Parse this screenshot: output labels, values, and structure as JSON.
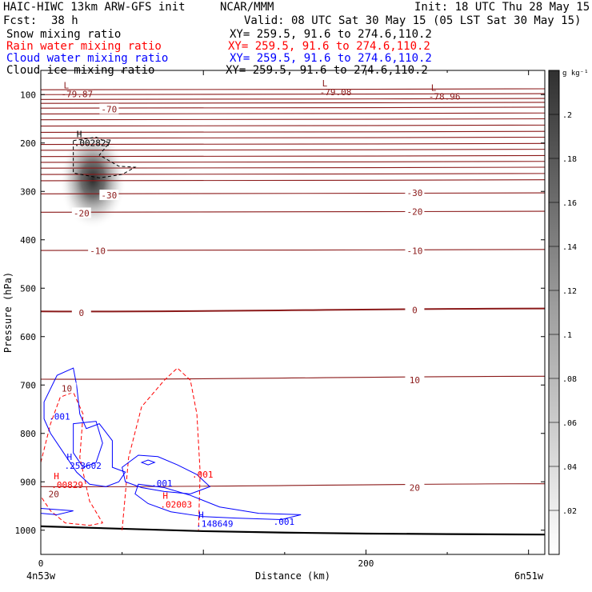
{
  "header": {
    "model": "HAIC-HIWC 13km ARW-GFS init",
    "org": "NCAR/MMM",
    "init": "Init: 18 UTC Thu 28 May 15",
    "fcst_label": "Fcst:",
    "fcst_value": "38 h",
    "valid": "Valid: 08 UTC Sat 30 May 15 (05 LST Sat 30 May 15)"
  },
  "fields": [
    {
      "name": "Snow mixing ratio",
      "xy": "XY= 259.5, 91.6 to 274.6,110.2",
      "color": "#000000"
    },
    {
      "name": "Rain water mixing ratio",
      "xy": "XY= 259.5, 91.6 to 274.6,110.2",
      "color": "#ff0000"
    },
    {
      "name": "Cloud water mixing ratio",
      "xy": "XY= 259.5, 91.6 to 274.6,110.2",
      "color": "#0000ff"
    },
    {
      "name": "Cloud ice mixing ratio",
      "xy": "XY= 259.5, 91.6 to 274.6,110.2",
      "color": "#000000"
    }
  ],
  "chart_data": {
    "type": "cross-section contour",
    "xlabel": "Distance (km)",
    "ylabel": "Pressure (hPa)",
    "x_ticks": [
      0,
      200
    ],
    "y_ticks": [
      100,
      200,
      300,
      400,
      500,
      600,
      700,
      800,
      900,
      1000
    ],
    "xlim": [
      0,
      310
    ],
    "ylim": [
      1050,
      50
    ],
    "y_scale": "linear",
    "x_endpoints": {
      "left": "4n53w",
      "right": "6n51w"
    },
    "colorbar": {
      "unit": "g kg⁻¹",
      "labels": [
        ".2",
        ".18",
        ".16",
        ".14",
        ".12",
        ".1",
        ".08",
        ".06",
        ".04",
        ".02"
      ],
      "ticks": [
        0.2,
        0.18,
        0.16,
        0.14,
        0.12,
        0.1,
        0.08,
        0.06,
        0.04,
        0.02
      ]
    },
    "temperature_contours": {
      "color": "#8b1a1a",
      "labels": [
        {
          "text": "-70",
          "x": 42,
          "p": 130
        },
        {
          "text": "-30",
          "x": 42,
          "p": 308
        },
        {
          "text": "-30",
          "x": 230,
          "p": 303
        },
        {
          "text": "-20",
          "x": 25,
          "p": 345
        },
        {
          "text": "-20",
          "x": 230,
          "p": 342
        },
        {
          "text": "-10",
          "x": 35,
          "p": 423
        },
        {
          "text": "-10",
          "x": 230,
          "p": 423
        },
        {
          "text": "0",
          "x": 25,
          "p": 551
        },
        {
          "text": "0",
          "x": 230,
          "p": 545
        },
        {
          "text": "10",
          "x": 16,
          "p": 707
        },
        {
          "text": "10",
          "x": 230,
          "p": 690
        },
        {
          "text": "20",
          "x": 8,
          "p": 925
        },
        {
          "text": "20",
          "x": 230,
          "p": 912
        }
      ]
    },
    "extrema": [
      {
        "kind": "L",
        "value": "-79.87",
        "x": 14,
        "p": 87,
        "color": "#8b1a1a"
      },
      {
        "kind": "L",
        "value": "-79.08",
        "x": 173,
        "p": 83,
        "color": "#8b1a1a"
      },
      {
        "kind": "L",
        "value": "-78.96",
        "x": 240,
        "p": 92,
        "color": "#8b1a1a"
      },
      {
        "kind": "H",
        "value": ".002827",
        "x": 22,
        "p": 188,
        "color": "#000000"
      },
      {
        "kind": "H",
        "value": ".253602",
        "x": 16,
        "p": 855,
        "color": "#0000ff"
      },
      {
        "kind": "H",
        "value": ".00829",
        "x": 8,
        "p": 895,
        "color": "#ff0000"
      },
      {
        "kind": "H",
        "value": ".02003",
        "x": 75,
        "p": 935,
        "color": "#ff0000"
      },
      {
        "kind": "H",
        "value": ".148649",
        "x": 97,
        "p": 975,
        "color": "#0000ff"
      }
    ],
    "contour_labels": [
      {
        "text": ".001",
        "x": 5,
        "p": 765,
        "color": "#0000ff"
      },
      {
        "text": ".001",
        "x": 68,
        "p": 903,
        "color": "#0000ff"
      },
      {
        "text": ".001",
        "x": 93,
        "p": 885,
        "color": "#ff0000"
      },
      {
        "text": ".001",
        "x": 143,
        "p": 982,
        "color": "#0000ff"
      }
    ],
    "snow_max": {
      "x": 32,
      "p": 275,
      "value": 0.2
    },
    "ground": {
      "x": [
        0,
        50,
        100,
        150,
        200,
        250,
        310
      ],
      "p": [
        992,
        997,
        1002,
        1005,
        1007,
        1008,
        1009
      ]
    }
  }
}
